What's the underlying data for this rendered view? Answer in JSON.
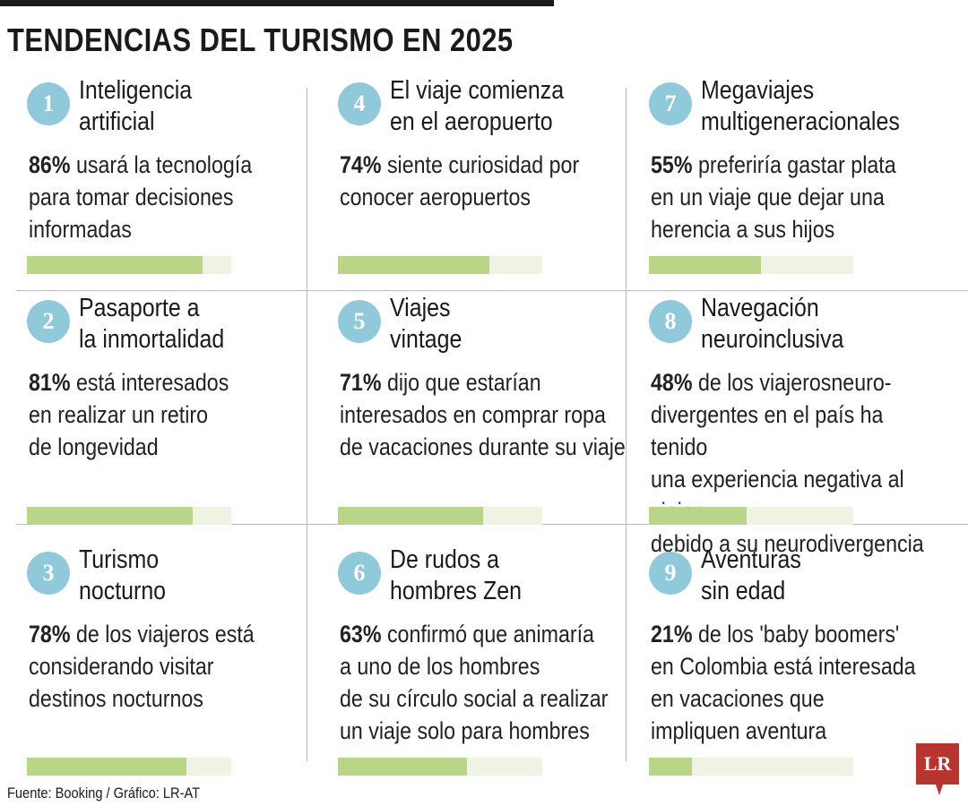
{
  "title": "TENDENCIAS DEL TURISMO EN 2025",
  "source": "Fuente: Booking / Gráfico: LR-AT",
  "logo": "LR",
  "colors": {
    "circle": "#8fc9da",
    "bar_fill": "#b9d587",
    "bar_track": "#eef3e4",
    "logo": "#b8342f"
  },
  "trends": [
    {
      "number": "1",
      "title_lines": [
        "Inteligencia",
        "artificial"
      ],
      "percent_label": "86%",
      "desc_lines": [
        "usará la tecnología",
        "para tomar decisiones",
        "informadas"
      ]
    },
    {
      "number": "2",
      "title_lines": [
        "Pasaporte a",
        "la inmortalidad"
      ],
      "percent_label": "81%",
      "desc_lines": [
        "está interesados",
        "en realizar un retiro",
        "de longevidad"
      ]
    },
    {
      "number": "3",
      "title_lines": [
        "Turismo",
        "nocturno"
      ],
      "percent_label": "78%",
      "desc_lines": [
        "de los viajeros está",
        "considerando visitar",
        "destinos nocturnos"
      ]
    },
    {
      "number": "4",
      "title_lines": [
        "El viaje comienza",
        "en el aeropuerto"
      ],
      "percent_label": "74%",
      "desc_lines": [
        "siente curiosidad por",
        "conocer aeropuertos"
      ]
    },
    {
      "number": "5",
      "title_lines": [
        "Viajes",
        "vintage"
      ],
      "percent_label": "71%",
      "desc_lines": [
        "dijo que estarían",
        "interesados en comprar ropa",
        "de vacaciones durante su viaje"
      ]
    },
    {
      "number": "6",
      "title_lines": [
        "De rudos a",
        "hombres Zen"
      ],
      "percent_label": "63%",
      "desc_lines": [
        "confirmó que animaría",
        "a uno de los hombres",
        "de su círculo social a realizar",
        "un viaje solo para hombres"
      ]
    },
    {
      "number": "7",
      "title_lines": [
        "Megaviajes",
        "multigeneracionales"
      ],
      "percent_label": "55%",
      "desc_lines": [
        "preferiría gastar plata",
        "en un viaje que dejar una",
        "herencia a sus hijos"
      ]
    },
    {
      "number": "8",
      "title_lines": [
        "Navegación",
        "neuroinclusiva"
      ],
      "percent_label": "48%",
      "desc_lines": [
        "de los viajerosneuro-",
        "divergentes en el país ha tenido",
        "una experiencia negativa al viajar",
        "debido a su neurodivergencia"
      ]
    },
    {
      "number": "9",
      "title_lines": [
        "Aventuras",
        "sin edad"
      ],
      "percent_label": "21%",
      "desc_lines": [
        "de los 'baby boomers'",
        "en Colombia está interesada",
        "en vacaciones que",
        "impliquen aventura"
      ]
    }
  ],
  "chart_data": {
    "type": "bar",
    "title": "TENDENCIAS DEL TURISMO EN 2025",
    "xlabel": "",
    "ylabel": "",
    "ylim": [
      0,
      100
    ],
    "categories": [
      "Inteligencia artificial",
      "Pasaporte a la inmortalidad",
      "Turismo nocturno",
      "El viaje comienza en el aeropuerto",
      "Viajes vintage",
      "De rudos a hombres Zen",
      "Megaviajes multigeneracionales",
      "Navegación neuroinclusiva",
      "Aventuras sin edad"
    ],
    "values": [
      86,
      81,
      78,
      74,
      71,
      63,
      55,
      48,
      21
    ],
    "grid": false
  }
}
